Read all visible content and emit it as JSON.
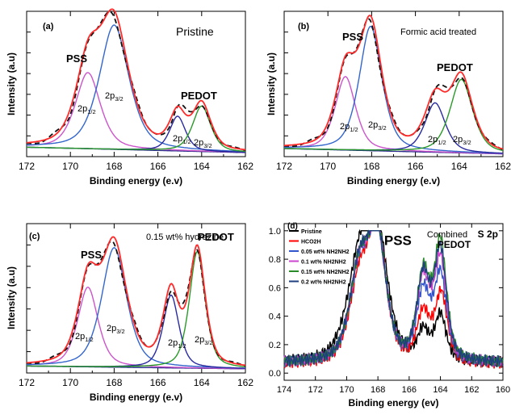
{
  "chart_data": [
    {
      "type": "line",
      "panel": "(a)",
      "title": "Pristine",
      "xlabel": "Binding energy (e.v)",
      "ylabel": "Intensity (a.u)",
      "xlim": [
        172,
        162
      ],
      "xticks": [
        172,
        170,
        168,
        166,
        164,
        162
      ],
      "annotations": [
        {
          "text": "PSS",
          "x": 170.2,
          "y": 0.87
        },
        {
          "text": "PEDOT",
          "x": 164.6,
          "y": 0.43
        },
        {
          "text": "2p1/2",
          "x": 169.6,
          "y": 0.38
        },
        {
          "text": "2p3/2",
          "x": 167.7,
          "y": 0.45
        },
        {
          "text": "2p1/2",
          "x": 165.0,
          "y": 0.18
        },
        {
          "text": "2p3/2",
          "x": 163.9,
          "y": 0.16
        }
      ],
      "peaks": {
        "pss_2p12": {
          "center": 169.2,
          "height": 0.57,
          "width": 0.55
        },
        "pss_2p32": {
          "center": 168.0,
          "height": 0.93,
          "width": 0.65
        },
        "pedot_2p12": {
          "center": 165.1,
          "height": 0.26,
          "width": 0.35
        },
        "pedot_2p32": {
          "center": 164.0,
          "height": 0.34,
          "width": 0.4
        }
      },
      "baseline": {
        "high_e": 0.07,
        "low_e": 0.03
      }
    },
    {
      "type": "line",
      "panel": "(b)",
      "title": "Formic acid treated",
      "xlabel": "Binding energy (e.v)",
      "ylabel": "Intensity (a.u)",
      "xlim": [
        172,
        162
      ],
      "xticks": [
        172,
        170,
        168,
        166,
        164,
        162
      ],
      "annotations": [
        {
          "text": "PSS",
          "x": 169.8,
          "y": 0.85
        },
        {
          "text": "PEDOT",
          "x": 164.4,
          "y": 0.6
        },
        {
          "text": "2p1/2",
          "x": 169.8,
          "y": 0.2
        },
        {
          "text": "2p3/2",
          "x": 167.8,
          "y": 0.21
        },
        {
          "text": "2p1/2",
          "x": 165.2,
          "y": 0.13
        },
        {
          "text": "2p3/2",
          "x": 163.8,
          "y": 0.14
        }
      ],
      "peaks": {
        "pss_2p12": {
          "center": 169.2,
          "height": 0.55,
          "width": 0.45
        },
        "pss_2p32": {
          "center": 168.05,
          "height": 0.93,
          "width": 0.5
        },
        "pedot_2p12": {
          "center": 165.1,
          "height": 0.37,
          "width": 0.45
        },
        "pedot_2p32": {
          "center": 163.9,
          "height": 0.55,
          "width": 0.5
        }
      },
      "baseline": {
        "high_e": 0.06,
        "low_e": 0.02
      }
    },
    {
      "type": "line",
      "panel": "(c)",
      "title": "0.15 wt% hydrazine",
      "xlabel": "Binding energy (e.v)",
      "ylabel": "Intensity (a.u)",
      "xlim": [
        172,
        162
      ],
      "xticks": [
        172,
        170,
        168,
        166,
        164,
        162
      ],
      "annotations": [
        {
          "text": "PSS",
          "x": 169.6,
          "y": 0.8
        },
        {
          "text": "PEDOT",
          "x": 164.0,
          "y": 0.8
        },
        {
          "text": "2p1/2",
          "x": 169.9,
          "y": 0.2
        },
        {
          "text": "2p3/2",
          "x": 167.7,
          "y": 0.23
        },
        {
          "text": "2p1/2",
          "x": 165.3,
          "y": 0.2
        },
        {
          "text": "2p3/2",
          "x": 163.7,
          "y": 0.2
        }
      ],
      "peaks": {
        "pss_2p12": {
          "center": 169.2,
          "height": 0.58,
          "width": 0.45
        },
        "pss_2p32": {
          "center": 168.0,
          "height": 0.87,
          "width": 0.55
        },
        "pedot_2p12": {
          "center": 165.4,
          "height": 0.53,
          "width": 0.35
        },
        "pedot_2p32": {
          "center": 164.2,
          "height": 0.85,
          "width": 0.35
        }
      },
      "baseline": {
        "high_e": 0.05,
        "low_e": 0.03
      }
    },
    {
      "type": "line",
      "panel": "(d)",
      "title": "Combined",
      "subtitle": "S 2p",
      "xlabel": "Binding energy (ev)",
      "xlim": [
        174,
        160
      ],
      "ylim": [
        -0.05,
        1.05
      ],
      "xticks": [
        174,
        172,
        170,
        168,
        166,
        164,
        162,
        160
      ],
      "yticks": [
        0.0,
        0.2,
        0.4,
        0.6,
        0.8,
        1.0
      ],
      "annotations": [
        {
          "text": "PSS",
          "x": 167.6,
          "y": 0.9
        },
        {
          "text": "PEDOT",
          "x": 164.2,
          "y": 0.88
        }
      ],
      "legend_position": "top-left",
      "series": [
        {
          "name": "Pristine",
          "color": "#000000",
          "pss": [
            {
              "c": 169.2,
              "h": 0.66,
              "w": 0.75
            },
            {
              "c": 168.05,
              "h": 0.84,
              "w": 0.65
            }
          ],
          "pedot": [
            {
              "c": 165.1,
              "h": 0.2,
              "w": 0.35
            },
            {
              "c": 164.0,
              "h": 0.32,
              "w": 0.35
            }
          ],
          "baseline": 0.07
        },
        {
          "name": "HCO2H",
          "color": "#ff0000",
          "pss": [
            {
              "c": 169.2,
              "h": 0.55,
              "w": 0.6
            },
            {
              "c": 168.05,
              "h": 0.9,
              "w": 0.55
            }
          ],
          "pedot": [
            {
              "c": 165.1,
              "h": 0.34,
              "w": 0.4
            },
            {
              "c": 163.95,
              "h": 0.48,
              "w": 0.38
            }
          ],
          "baseline": 0.06
        },
        {
          "name": "0.05 wt% NH2NH2",
          "color": "#3355cc",
          "pss": [
            {
              "c": 169.2,
              "h": 0.6,
              "w": 0.6
            },
            {
              "c": 168.05,
              "h": 0.86,
              "w": 0.55
            }
          ],
          "pedot": [
            {
              "c": 165.1,
              "h": 0.48,
              "w": 0.4
            },
            {
              "c": 164.0,
              "h": 0.6,
              "w": 0.38
            }
          ],
          "baseline": 0.07
        },
        {
          "name": "0.1 wt% NH2NH2",
          "color": "#cc44cc",
          "pss": [
            {
              "c": 169.2,
              "h": 0.62,
              "w": 0.6
            },
            {
              "c": 168.05,
              "h": 0.85,
              "w": 0.55
            }
          ],
          "pedot": [
            {
              "c": 165.1,
              "h": 0.56,
              "w": 0.4
            },
            {
              "c": 164.0,
              "h": 0.7,
              "w": 0.38
            }
          ],
          "baseline": 0.07
        },
        {
          "name": "0.15 wt% NH2NH2",
          "color": "#2a8a2a",
          "pss": [
            {
              "c": 169.2,
              "h": 0.62,
              "w": 0.6
            },
            {
              "c": 168.05,
              "h": 0.86,
              "w": 0.55
            }
          ],
          "pedot": [
            {
              "c": 165.1,
              "h": 0.6,
              "w": 0.4
            },
            {
              "c": 164.0,
              "h": 0.82,
              "w": 0.38
            }
          ],
          "baseline": 0.07
        },
        {
          "name": "0.2 wt% NH2NH2",
          "color": "#1f3f7f",
          "pss": [
            {
              "c": 169.2,
              "h": 0.63,
              "w": 0.6
            },
            {
              "c": 168.05,
              "h": 0.86,
              "w": 0.55
            }
          ],
          "pedot": [
            {
              "c": 165.1,
              "h": 0.58,
              "w": 0.4
            },
            {
              "c": 164.0,
              "h": 0.76,
              "w": 0.38
            }
          ],
          "baseline": 0.07
        }
      ]
    }
  ],
  "colors": {
    "envelope": "#ff2a2a",
    "raw": "#111111",
    "pss_1_2": "#cc55cc",
    "pss_3_2": "#3366cc",
    "pedot_1_2": "#2a2aa0",
    "pedot_3_2": "#2a9a2a",
    "background": "#2a2a8a"
  }
}
